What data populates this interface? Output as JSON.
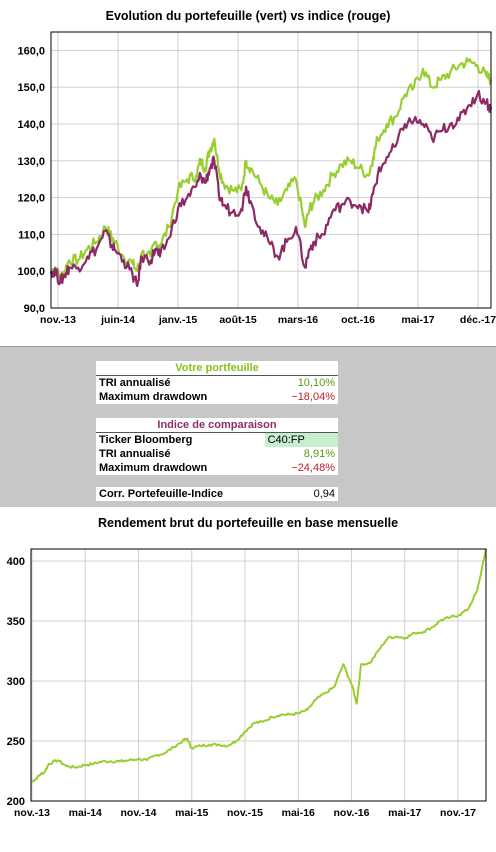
{
  "chart_data": [
    {
      "type": "line",
      "title": "Evolution du portefeuille (vert) vs indice (rouge)",
      "ylim": [
        90,
        165
      ],
      "yticks": [
        "90,0",
        "100,0",
        "110,0",
        "120,0",
        "130,0",
        "140,0",
        "150,0",
        "160,0"
      ],
      "ytick_values": [
        90,
        100,
        110,
        120,
        130,
        140,
        150,
        160
      ],
      "xticks": [
        "nov.-13",
        "juin-14",
        "janv.-15",
        "août-15",
        "mars-16",
        "oct.-16",
        "mai-17",
        "déc.-17"
      ],
      "grid": true,
      "series": [
        {
          "color": "#9acd32",
          "points": [
            [
              0,
              100
            ],
            [
              0.5,
              101
            ],
            [
              1,
              98
            ],
            [
              1.5,
              100
            ],
            [
              2,
              103
            ],
            [
              3,
              103
            ],
            [
              4,
              106
            ],
            [
              5,
              108
            ],
            [
              6,
              112
            ],
            [
              6.5,
              110
            ],
            [
              7,
              108
            ],
            [
              8,
              104
            ],
            [
              9,
              102
            ],
            [
              9.5,
              100
            ],
            [
              10,
              105
            ],
            [
              11,
              104
            ],
            [
              11.5,
              108
            ],
            [
              12,
              107
            ],
            [
              13,
              112
            ],
            [
              14,
              122
            ],
            [
              15,
              125
            ],
            [
              16,
              126
            ],
            [
              16.5,
              130
            ],
            [
              17,
              128
            ],
            [
              17.5,
              133
            ],
            [
              18,
              136
            ],
            [
              18.5,
              128
            ],
            [
              19,
              124
            ],
            [
              20,
              122
            ],
            [
              21,
              122
            ],
            [
              21.5,
              130
            ],
            [
              22,
              128
            ],
            [
              23,
              124
            ],
            [
              24,
              120
            ],
            [
              25,
              118
            ],
            [
              26,
              122
            ],
            [
              27,
              125
            ],
            [
              28,
              112
            ],
            [
              28.5,
              117
            ],
            [
              29,
              119
            ],
            [
              30,
              122
            ],
            [
              31,
              126
            ],
            [
              32,
              129
            ],
            [
              33,
              130
            ],
            [
              34,
              128
            ],
            [
              35,
              126
            ],
            [
              35.5,
              131
            ],
            [
              36,
              136
            ],
            [
              37,
              140
            ],
            [
              38,
              142
            ],
            [
              39,
              148
            ],
            [
              40,
              150
            ],
            [
              41,
              155
            ],
            [
              42,
              150
            ],
            [
              43,
              152
            ],
            [
              44,
              154
            ],
            [
              45,
              156
            ],
            [
              46,
              157
            ],
            [
              47,
              156
            ],
            [
              48,
              153
            ],
            [
              48.5,
              152
            ]
          ]
        },
        {
          "color": "#8b2a64",
          "points": [
            [
              0,
              100
            ],
            [
              0.5,
              100
            ],
            [
              1,
              97
            ],
            [
              1.5,
              99
            ],
            [
              2,
              101
            ],
            [
              3,
              101
            ],
            [
              4,
              104
            ],
            [
              5,
              106
            ],
            [
              6,
              111
            ],
            [
              6.5,
              108
            ],
            [
              7,
              106
            ],
            [
              8,
              103
            ],
            [
              9,
              99
            ],
            [
              9.5,
              96
            ],
            [
              10,
              104
            ],
            [
              11,
              103
            ],
            [
              11.5,
              106
            ],
            [
              12,
              104
            ],
            [
              13,
              109
            ],
            [
              14,
              117
            ],
            [
              15,
              120
            ],
            [
              16,
              123
            ],
            [
              16.5,
              126
            ],
            [
              17,
              124
            ],
            [
              17.5,
              128
            ],
            [
              18,
              130
            ],
            [
              18.5,
              121
            ],
            [
              19,
              118
            ],
            [
              20,
              116
            ],
            [
              21,
              117
            ],
            [
              21.5,
              123
            ],
            [
              22,
              119
            ],
            [
              23,
              112
            ],
            [
              24,
              108
            ],
            [
              25,
              104
            ],
            [
              26,
              108
            ],
            [
              27,
              112
            ],
            [
              28,
              101
            ],
            [
              28.5,
              106
            ],
            [
              29,
              108
            ],
            [
              30,
              110
            ],
            [
              31,
              116
            ],
            [
              32,
              118
            ],
            [
              33,
              119
            ],
            [
              34,
              118
            ],
            [
              35,
              116
            ],
            [
              35.5,
              121
            ],
            [
              36,
              126
            ],
            [
              37,
              131
            ],
            [
              38,
              134
            ],
            [
              39,
              140
            ],
            [
              40,
              141
            ],
            [
              41,
              140
            ],
            [
              42,
              136
            ],
            [
              43,
              138
            ],
            [
              44,
              140
            ],
            [
              45,
              141
            ],
            [
              46,
              145
            ],
            [
              47,
              148
            ],
            [
              48,
              146
            ],
            [
              48.5,
              144
            ]
          ]
        }
      ]
    },
    {
      "type": "line",
      "title": "Rendement brut du portefeuille en base mensuelle",
      "ylim": [
        200,
        410
      ],
      "yticks": [
        "200",
        "250",
        "300",
        "350",
        "400"
      ],
      "ytick_values": [
        200,
        250,
        300,
        350,
        400
      ],
      "xticks": [
        "nov.-13",
        "mai-14",
        "nov.-14",
        "mai-15",
        "nov.-15",
        "mai-16",
        "nov.-16",
        "mai-17",
        "nov.-17"
      ],
      "grid": true,
      "series": [
        {
          "color": "#9acd32",
          "points": [
            [
              0,
              216
            ],
            [
              0.5,
              218
            ],
            [
              1,
              222
            ],
            [
              1.5,
              224
            ],
            [
              2,
              231
            ],
            [
              3,
              234
            ],
            [
              4,
              229
            ],
            [
              5,
              228
            ],
            [
              6,
              230
            ],
            [
              7,
              231
            ],
            [
              8,
              233
            ],
            [
              9,
              233
            ],
            [
              10,
              233
            ],
            [
              11,
              234
            ],
            [
              12,
              235
            ],
            [
              13,
              234
            ],
            [
              14,
              238
            ],
            [
              15,
              240
            ],
            [
              16,
              245
            ],
            [
              17,
              250
            ],
            [
              17.5,
              252
            ],
            [
              18,
              244
            ],
            [
              19,
              246
            ],
            [
              20,
              247
            ],
            [
              21,
              247
            ],
            [
              22,
              246
            ],
            [
              23,
              250
            ],
            [
              24,
              258
            ],
            [
              25,
              265
            ],
            [
              26,
              266
            ],
            [
              27,
              270
            ],
            [
              28,
              272
            ],
            [
              29,
              272
            ],
            [
              30,
              273
            ],
            [
              31,
              276
            ],
            [
              32,
              285
            ],
            [
              33,
              290
            ],
            [
              34,
              295
            ],
            [
              35,
              314
            ],
            [
              36,
              296
            ],
            [
              36.5,
              281
            ],
            [
              37,
              314
            ],
            [
              38,
              315
            ],
            [
              39,
              326
            ],
            [
              40,
              336
            ],
            [
              41,
              337
            ],
            [
              42,
              336
            ],
            [
              43,
              340
            ],
            [
              44,
              341
            ],
            [
              45,
              345
            ],
            [
              46,
              351
            ],
            [
              47,
              353
            ],
            [
              48,
              355
            ],
            [
              49,
              360
            ],
            [
              50,
              375
            ],
            [
              50.5,
              392
            ],
            [
              51,
              410
            ]
          ]
        }
      ]
    }
  ],
  "stats": {
    "portfolio": {
      "header": "Votre portfeuille",
      "tri_label": "TRI annualisé",
      "tri_value": "10,10%",
      "dd_label": "Maximum drawdown",
      "dd_value": "−18,04%"
    },
    "index": {
      "header": "Indice de comparaison",
      "ticker_label": "Ticker Bloomberg",
      "ticker_value": "C40:FP",
      "tri_label": "TRI annualisé",
      "tri_value": "8,91%",
      "dd_label": "Maximum drawdown",
      "dd_value": "−24,48%"
    },
    "corr": {
      "label": "Corr. Portefeuille-Indice",
      "value": "0,94"
    }
  }
}
